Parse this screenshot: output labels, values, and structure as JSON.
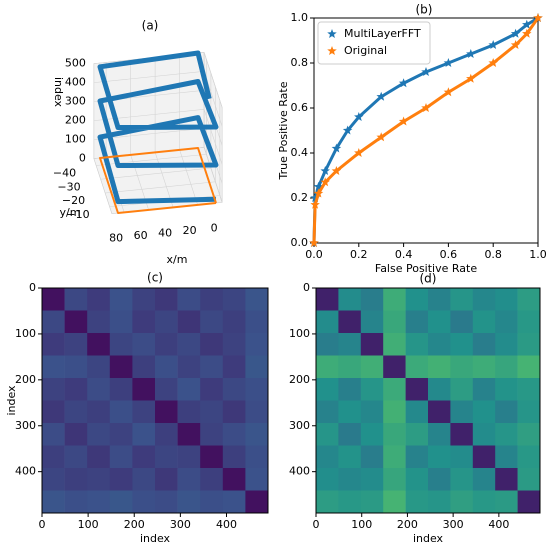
{
  "chart_data": [
    {
      "type": "line3d",
      "title": "(a)",
      "xlabel": "x/m",
      "ylabel": "y/m",
      "zlabel": "index",
      "xlim": [
        0,
        90
      ],
      "ylim": [
        -45,
        -5
      ],
      "zlim": [
        0,
        500
      ],
      "xticks": [
        0,
        20,
        40,
        60,
        80
      ],
      "yticks": [
        {
          "value": -40,
          "label": "−40"
        },
        {
          "value": -30,
          "label": "−30"
        },
        {
          "value": -20,
          "label": "−20"
        },
        {
          "value": -10,
          "label": "−10"
        }
      ],
      "zticks": [
        0,
        100,
        200,
        300,
        400,
        500
      ],
      "series": [
        {
          "color": "#1f77b4",
          "x": [
            5,
            85,
            85,
            5,
            5,
            85,
            85,
            5,
            5,
            85,
            85,
            5,
            5
          ],
          "y": [
            -5,
            -5,
            -45,
            -45,
            -5,
            -5,
            -45,
            -45,
            -5,
            -5,
            -45,
            -45,
            -20
          ],
          "z": [
            20,
            60,
            110,
            160,
            200,
            250,
            300,
            350,
            400,
            450,
            480,
            500,
            440
          ]
        },
        {
          "color": "#ff7f0e",
          "x": [
            5,
            85,
            85,
            5,
            5
          ],
          "y": [
            -5,
            -5,
            -45,
            -45,
            -5
          ],
          "z": [
            0,
            0,
            0,
            0,
            0
          ]
        }
      ]
    },
    {
      "type": "line",
      "title": "(b)",
      "xlabel": "False Positive Rate",
      "ylabel": "True Positive Rate",
      "legend": "upper left",
      "xlim": [
        0,
        1
      ],
      "ylim": [
        0,
        1
      ],
      "xticks": [
        {
          "value": 0,
          "label": "0.0"
        },
        0.2,
        0.4,
        0.6,
        0.8,
        {
          "value": 1,
          "label": "1.0"
        }
      ],
      "yticks": [
        {
          "value": 0,
          "label": "0.0"
        },
        0.2,
        0.4,
        0.6,
        0.8,
        {
          "value": 1,
          "label": "1.0"
        }
      ],
      "series": [
        {
          "name": "MultiLayerFFT",
          "color": "#1f77b4",
          "x": [
            0,
            0.005,
            0.02,
            0.05,
            0.1,
            0.15,
            0.2,
            0.3,
            0.4,
            0.5,
            0.6,
            0.7,
            0.8,
            0.9,
            0.95,
            1
          ],
          "values": [
            0,
            0.2,
            0.25,
            0.32,
            0.42,
            0.5,
            0.56,
            0.65,
            0.71,
            0.76,
            0.8,
            0.84,
            0.88,
            0.93,
            0.97,
            1
          ]
        },
        {
          "name": "Original",
          "color": "#ff7f0e",
          "x": [
            0,
            0.005,
            0.02,
            0.05,
            0.1,
            0.2,
            0.3,
            0.4,
            0.5,
            0.6,
            0.7,
            0.8,
            0.9,
            0.95,
            1
          ],
          "values": [
            0,
            0.17,
            0.22,
            0.27,
            0.32,
            0.4,
            0.47,
            0.54,
            0.6,
            0.67,
            0.73,
            0.8,
            0.88,
            0.93,
            1
          ]
        }
      ]
    },
    {
      "type": "heatmap",
      "title": "(c)",
      "xlabel": "index",
      "ylabel": "index",
      "colormap": "viridis",
      "clim": [
        0,
        1
      ],
      "xlim": [
        0,
        490
      ],
      "ylim": [
        0,
        490
      ],
      "xticks": [
        0,
        100,
        200,
        300,
        400
      ],
      "yticks": [
        0,
        100,
        200,
        300,
        400
      ],
      "z": [
        [
          0.05,
          0.22,
          0.18,
          0.25,
          0.2,
          0.17,
          0.23,
          0.19,
          0.21,
          0.26
        ],
        [
          0.22,
          0.05,
          0.2,
          0.24,
          0.18,
          0.21,
          0.16,
          0.22,
          0.19,
          0.24
        ],
        [
          0.18,
          0.2,
          0.05,
          0.21,
          0.23,
          0.19,
          0.22,
          0.17,
          0.2,
          0.25
        ],
        [
          0.25,
          0.24,
          0.21,
          0.05,
          0.19,
          0.24,
          0.2,
          0.23,
          0.18,
          0.27
        ],
        [
          0.2,
          0.18,
          0.23,
          0.19,
          0.05,
          0.2,
          0.25,
          0.18,
          0.22,
          0.24
        ],
        [
          0.17,
          0.21,
          0.19,
          0.24,
          0.2,
          0.05,
          0.19,
          0.21,
          0.17,
          0.23
        ],
        [
          0.23,
          0.16,
          0.22,
          0.2,
          0.25,
          0.19,
          0.05,
          0.2,
          0.23,
          0.26
        ],
        [
          0.19,
          0.22,
          0.17,
          0.23,
          0.18,
          0.21,
          0.2,
          0.05,
          0.19,
          0.24
        ],
        [
          0.21,
          0.19,
          0.2,
          0.18,
          0.22,
          0.17,
          0.23,
          0.19,
          0.05,
          0.25
        ],
        [
          0.26,
          0.24,
          0.25,
          0.27,
          0.24,
          0.23,
          0.26,
          0.24,
          0.25,
          0.05
        ]
      ]
    },
    {
      "type": "heatmap",
      "title": "(d)",
      "xlabel": "index",
      "colormap": "viridis",
      "clim": [
        0,
        1
      ],
      "xlim": [
        0,
        490
      ],
      "ylim": [
        0,
        490
      ],
      "xticks": [
        0,
        100,
        200,
        300,
        400
      ],
      "yticks": [
        0,
        100,
        200,
        300,
        400
      ],
      "z": [
        [
          0.1,
          0.48,
          0.42,
          0.62,
          0.5,
          0.44,
          0.52,
          0.46,
          0.49,
          0.55
        ],
        [
          0.48,
          0.1,
          0.45,
          0.6,
          0.43,
          0.5,
          0.41,
          0.51,
          0.46,
          0.53
        ],
        [
          0.42,
          0.45,
          0.1,
          0.63,
          0.52,
          0.46,
          0.5,
          0.42,
          0.48,
          0.54
        ],
        [
          0.62,
          0.6,
          0.63,
          0.1,
          0.61,
          0.64,
          0.6,
          0.62,
          0.59,
          0.65
        ],
        [
          0.5,
          0.43,
          0.52,
          0.61,
          0.1,
          0.47,
          0.55,
          0.44,
          0.51,
          0.53
        ],
        [
          0.44,
          0.5,
          0.46,
          0.64,
          0.47,
          0.1,
          0.45,
          0.5,
          0.43,
          0.52
        ],
        [
          0.52,
          0.41,
          0.5,
          0.6,
          0.55,
          0.45,
          0.1,
          0.48,
          0.52,
          0.56
        ],
        [
          0.46,
          0.51,
          0.42,
          0.62,
          0.44,
          0.5,
          0.48,
          0.1,
          0.45,
          0.53
        ],
        [
          0.49,
          0.46,
          0.48,
          0.59,
          0.51,
          0.43,
          0.52,
          0.45,
          0.1,
          0.54
        ],
        [
          0.55,
          0.53,
          0.54,
          0.65,
          0.53,
          0.52,
          0.56,
          0.53,
          0.54,
          0.1
        ]
      ]
    }
  ]
}
